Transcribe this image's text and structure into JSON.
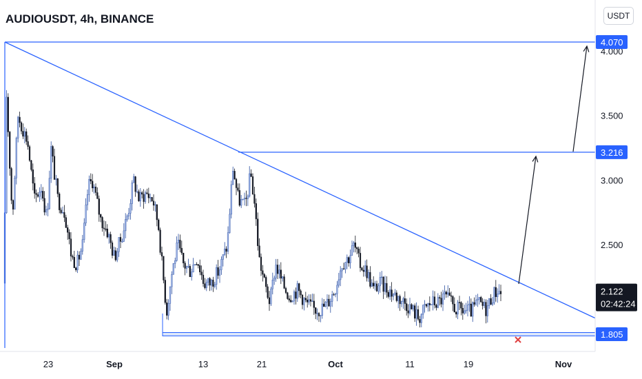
{
  "header": {
    "title": "AUDIOUSDT, 4h, BINANCE",
    "currency": "USDT"
  },
  "colors": {
    "accent": "#2962ff",
    "up": "#2a4ea0",
    "down": "#131722",
    "up_fill": "#9fb6e8",
    "current_tag": "#131722",
    "target_marker": "#e04040"
  },
  "chart_data": {
    "type": "candlestick",
    "symbol": "AUDIOUSDT",
    "interval": "4h",
    "exchange": "BINANCE",
    "y_ticks": [
      "4.000",
      "3.500",
      "3.000",
      "2.500"
    ],
    "y_tick_values": [
      4.0,
      3.5,
      3.0,
      2.5
    ],
    "ylim": [
      1.63,
      4.33
    ],
    "x_ticks": [
      {
        "label": "23",
        "bold": false
      },
      {
        "label": "Sep",
        "bold": true
      },
      {
        "label": "13",
        "bold": false
      },
      {
        "label": "21",
        "bold": false
      },
      {
        "label": "Oct",
        "bold": true
      },
      {
        "label": "11",
        "bold": false
      },
      {
        "label": "19",
        "bold": false
      },
      {
        "label": "Nov",
        "bold": true
      }
    ],
    "price_levels": [
      {
        "label": "4.070",
        "value": 4.07,
        "kind": "resistance"
      },
      {
        "label": "3.216",
        "value": 3.216,
        "kind": "resistance"
      },
      {
        "label": "1.805",
        "value": 1.805,
        "kind": "support"
      }
    ],
    "current_price": {
      "label": "2.122",
      "value": 2.122,
      "countdown": "02:42:24"
    },
    "trendline": {
      "from_value": 4.07,
      "to_value": 1.93,
      "style": "descending"
    },
    "projection_arrows": [
      "to 3.216",
      "to 4.070"
    ],
    "target_marker": "x"
  }
}
